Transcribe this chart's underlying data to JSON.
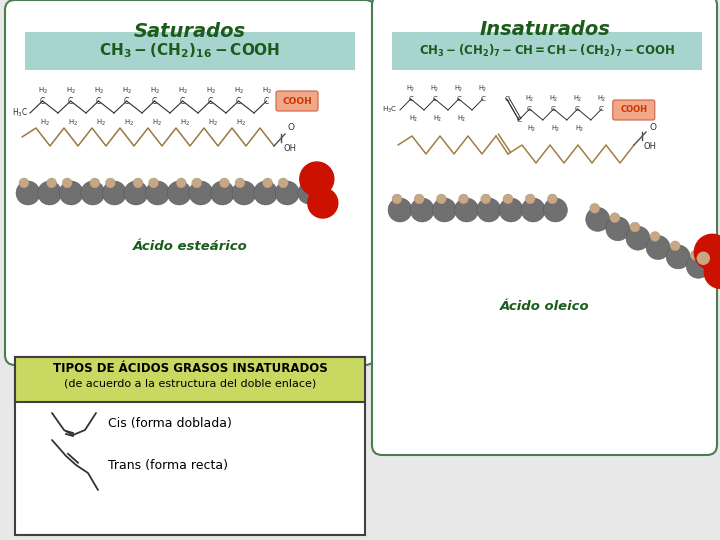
{
  "bg_color": "#e8e8e8",
  "panel_bg": "#ffffff",
  "panel_border_color": "#4a7c4e",
  "dark_green": "#1a5c1a",
  "formula_bg": "#a8d4d0",
  "cooh_bg": "#f0a888",
  "cooh_text": "#cc3300",
  "gray_sphere": "#707070",
  "beige_sphere": "#c8a882",
  "red_sphere": "#cc1100",
  "chain_color": "#a08040",
  "struct_color": "#404040",
  "title_saturados": "Saturados",
  "title_insaturados": "Insaturados",
  "label_acido_estearico": "Ácido esteárico",
  "label_acido_oleico": "Ácido oleico",
  "title_tipos": "TIPOS DE ÁCIDOS GRASOS INSATURADOS",
  "subtitle_tipos": "(de acuerdo a la estructura del doble enlace)",
  "label_cis": "Cis (forma doblada)",
  "label_trans": "Trans (forma recta)",
  "tipos_header_color": "#c8d860",
  "tipos_border_color": "#404040"
}
